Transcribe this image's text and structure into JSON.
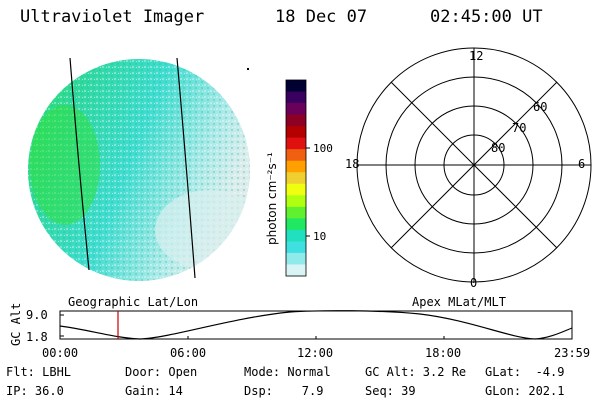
{
  "header": {
    "title": "Ultraviolet Imager",
    "date": "18 Dec 07",
    "time": "02:45:00 UT"
  },
  "colorbar": {
    "unit_label": "photon cm⁻²s⁻¹",
    "ticks": [
      "100",
      "10"
    ],
    "colors": [
      "#000033",
      "#3a0060",
      "#6a005a",
      "#8c0024",
      "#b40000",
      "#e01010",
      "#f06010",
      "#ffa000",
      "#f0d030",
      "#eeff10",
      "#b0ff10",
      "#60f030",
      "#20e860",
      "#20e0c0",
      "#40e0e0",
      "#90eaea",
      "#d8f4f4"
    ]
  },
  "polar": {
    "clock_labels": {
      "top": "12",
      "left": "18",
      "right": "6",
      "bottom": "0"
    },
    "lat_labels": [
      "80",
      "70",
      "60"
    ]
  },
  "image_labels": {
    "left": "Geographic Lat/Lon",
    "right": "Apex MLat/MLT"
  },
  "altitude_plot": {
    "axis_label": "GC Alt",
    "y_ticks": [
      "9.0",
      "1.8"
    ],
    "x_ticks": [
      "00:00",
      "06:00",
      "12:00",
      "18:00",
      "23:59"
    ],
    "marker_color": "#cc0000"
  },
  "info": {
    "row1": {
      "flt": "Flt: LBHL",
      "door": "Door: Open",
      "mode": "Mode: Normal",
      "gcalt": "GC Alt: 3.2 Re",
      "glat": "GLat:  -4.9"
    },
    "row2": {
      "ip": "IP: 36.0",
      "gain": "Gain: 14",
      "dsp": "Dsp:    7.9",
      "seq": "Seq: 39",
      "glon": "GLon: 202.1"
    }
  }
}
